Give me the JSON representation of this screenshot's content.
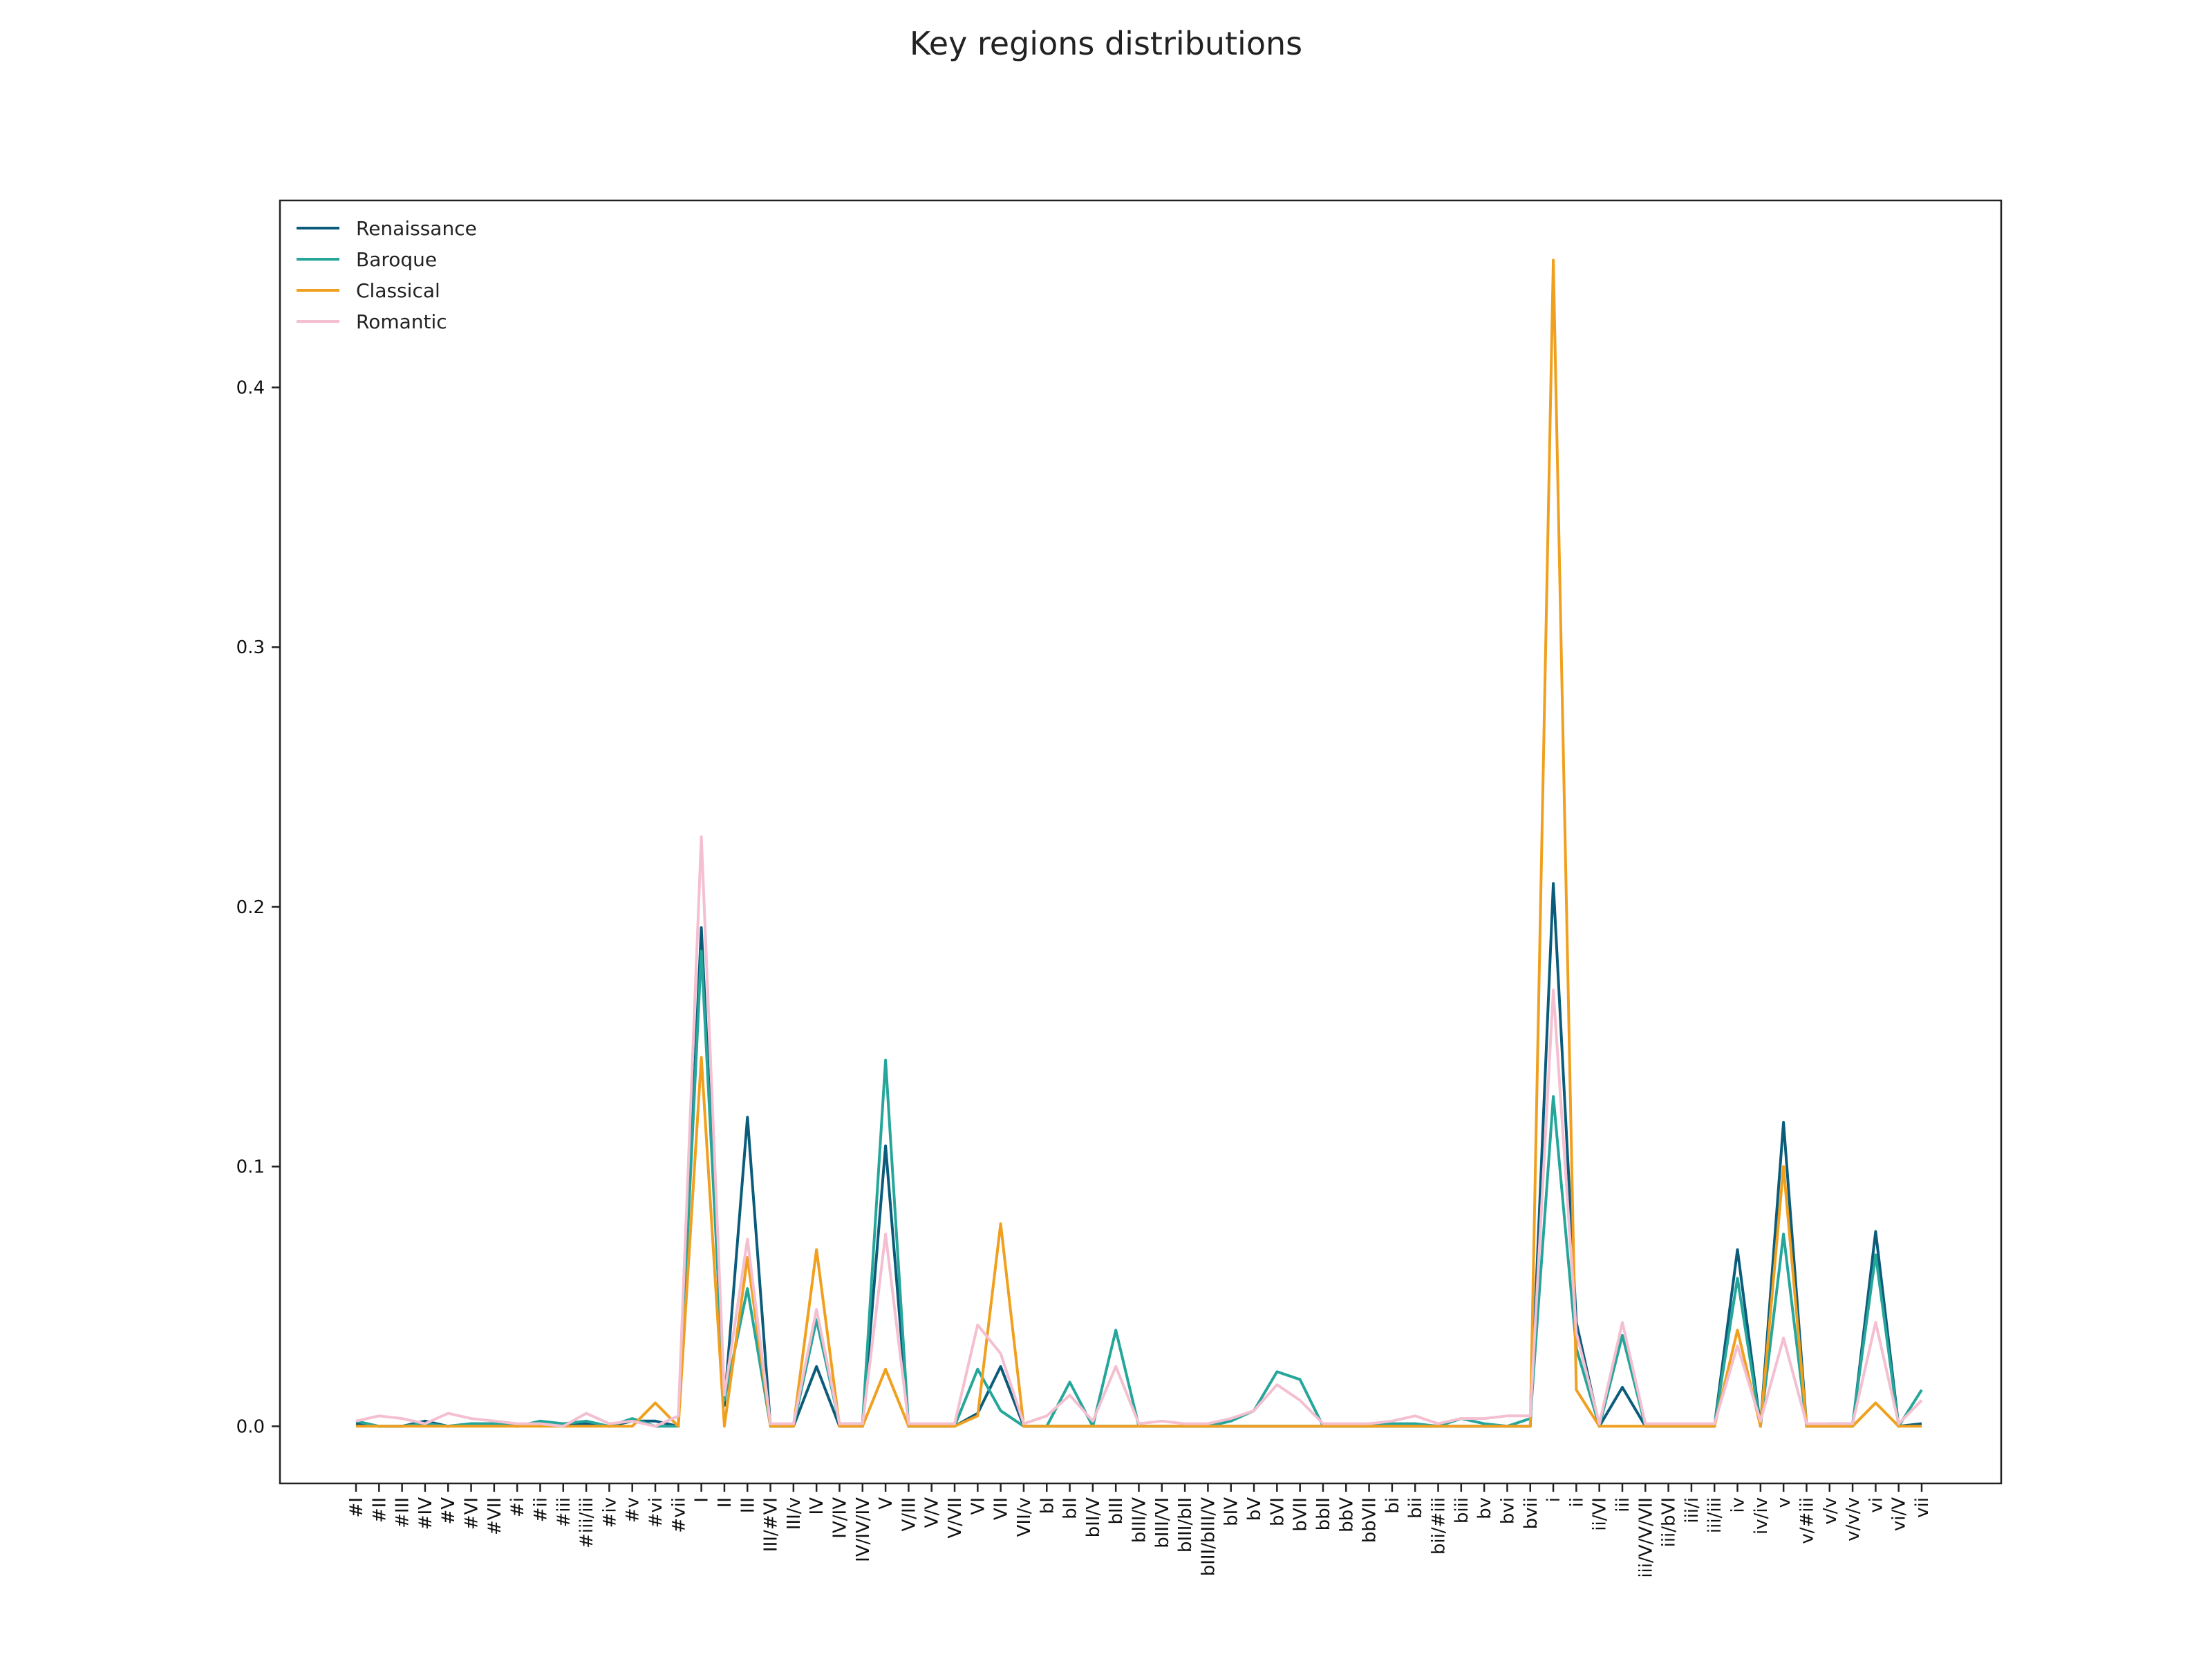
{
  "chart_data": {
    "type": "line",
    "title": "Key regions distributions",
    "xlabel": "",
    "ylabel": "",
    "ylim": [
      -0.022,
      0.472
    ],
    "yticks": [
      0.0,
      0.1,
      0.2,
      0.3,
      0.4
    ],
    "ytick_labels": [
      "0.0",
      "0.1",
      "0.2",
      "0.3",
      "0.4"
    ],
    "grid": false,
    "legend_position": "top-left",
    "categories": [
      "#I",
      "#II",
      "#III",
      "#IV",
      "#V",
      "#VI",
      "#VII",
      "#i",
      "#ii",
      "#iii",
      "#iii/iii",
      "#iv",
      "#v",
      "#vi",
      "#vii",
      "I",
      "II",
      "III",
      "III/#VI",
      "III/v",
      "IV",
      "IV/IV",
      "IV/IV/IV",
      "V",
      "V/III",
      "V/V",
      "V/VII",
      "VI",
      "VII",
      "VII/v",
      "bI",
      "bII",
      "bII/V",
      "bIII",
      "bIII/V",
      "bIII/VI",
      "bIII/bII",
      "bIII/bIII/V",
      "bIV",
      "bV",
      "bVI",
      "bVII",
      "bbII",
      "bbV",
      "bbVII",
      "bi",
      "bii",
      "bii/#iii",
      "biii",
      "bv",
      "bvi",
      "bvii",
      "i",
      "ii",
      "ii/VI",
      "iii",
      "iii/V/V/VII",
      "iii/bVI",
      "iii/i",
      "iii/iii",
      "iv",
      "iv/iv",
      "v",
      "v/#iii",
      "v/v",
      "v/v/v",
      "vi",
      "vi/V",
      "vii"
    ],
    "series": [
      {
        "name": "Renaissance",
        "color": "#0b5c7a",
        "values": [
          0.001,
          0.0,
          0.0,
          0.002,
          0.0,
          0.001,
          0.001,
          0.0,
          0.001,
          0.0,
          0.001,
          0.0,
          0.002,
          0.002,
          0.0,
          0.192,
          0.008,
          0.119,
          0.0,
          0.0,
          0.023,
          0.0,
          0.0,
          0.108,
          0.0,
          0.0,
          0.0,
          0.005,
          0.023,
          0.0,
          0.0,
          0.0,
          0.0,
          0.0,
          0.0,
          0.0,
          0.0,
          0.0,
          0.0,
          0.0,
          0.0,
          0.0,
          0.0,
          0.0,
          0.0,
          0.0,
          0.0,
          0.0,
          0.0,
          0.0,
          0.0,
          0.0,
          0.209,
          0.04,
          0.0,
          0.015,
          0.0,
          0.0,
          0.0,
          0.0,
          0.068,
          0.0,
          0.117,
          0.0,
          0.0,
          0.0,
          0.075,
          0.0,
          0.001
        ]
      },
      {
        "name": "Baroque",
        "color": "#26a69a",
        "values": [
          0.002,
          0.0,
          0.0,
          0.001,
          0.0,
          0.001,
          0.001,
          0.0,
          0.002,
          0.001,
          0.002,
          0.0,
          0.003,
          0.0,
          0.0,
          0.183,
          0.01,
          0.053,
          0.0,
          0.0,
          0.041,
          0.001,
          0.001,
          0.141,
          0.0,
          0.0,
          0.0,
          0.022,
          0.006,
          0.0,
          0.0,
          0.017,
          0.0,
          0.037,
          0.0,
          0.0,
          0.0,
          0.0,
          0.002,
          0.006,
          0.021,
          0.018,
          0.0,
          0.0,
          0.0,
          0.001,
          0.001,
          0.0,
          0.003,
          0.001,
          0.0,
          0.003,
          0.127,
          0.03,
          0.0,
          0.035,
          0.0,
          0.0,
          0.0,
          0.0,
          0.057,
          0.0,
          0.074,
          0.0,
          0.001,
          0.001,
          0.066,
          0.0,
          0.014
        ]
      },
      {
        "name": "Classical",
        "color": "#f0a01e",
        "values": [
          0.0,
          0.0,
          0.0,
          0.0,
          0.0,
          0.0,
          0.0,
          0.0,
          0.0,
          0.0,
          0.0,
          0.0,
          0.0,
          0.009,
          0.0,
          0.142,
          0.0,
          0.065,
          0.0,
          0.0,
          0.068,
          0.0,
          0.0,
          0.022,
          0.0,
          0.0,
          0.0,
          0.004,
          0.078,
          0.0,
          0.0,
          0.0,
          0.0,
          0.0,
          0.0,
          0.0,
          0.0,
          0.0,
          0.0,
          0.0,
          0.0,
          0.0,
          0.0,
          0.0,
          0.0,
          0.0,
          0.0,
          0.0,
          0.0,
          0.0,
          0.0,
          0.0,
          0.449,
          0.014,
          0.0,
          0.0,
          0.0,
          0.0,
          0.0,
          0.0,
          0.037,
          0.0,
          0.1,
          0.0,
          0.0,
          0.0,
          0.009,
          0.0,
          0.0
        ]
      },
      {
        "name": "Romantic",
        "color": "#f4bfd0",
        "values": [
          0.002,
          0.004,
          0.003,
          0.001,
          0.005,
          0.003,
          0.002,
          0.001,
          0.001,
          0.0,
          0.005,
          0.001,
          0.002,
          0.0,
          0.004,
          0.227,
          0.012,
          0.072,
          0.001,
          0.001,
          0.045,
          0.001,
          0.001,
          0.074,
          0.001,
          0.001,
          0.001,
          0.039,
          0.028,
          0.001,
          0.004,
          0.012,
          0.002,
          0.023,
          0.001,
          0.002,
          0.001,
          0.001,
          0.003,
          0.006,
          0.016,
          0.01,
          0.001,
          0.001,
          0.001,
          0.002,
          0.004,
          0.001,
          0.003,
          0.003,
          0.004,
          0.004,
          0.168,
          0.036,
          0.001,
          0.04,
          0.001,
          0.001,
          0.001,
          0.001,
          0.031,
          0.002,
          0.034,
          0.001,
          0.001,
          0.001,
          0.04,
          0.001,
          0.01
        ]
      }
    ]
  }
}
